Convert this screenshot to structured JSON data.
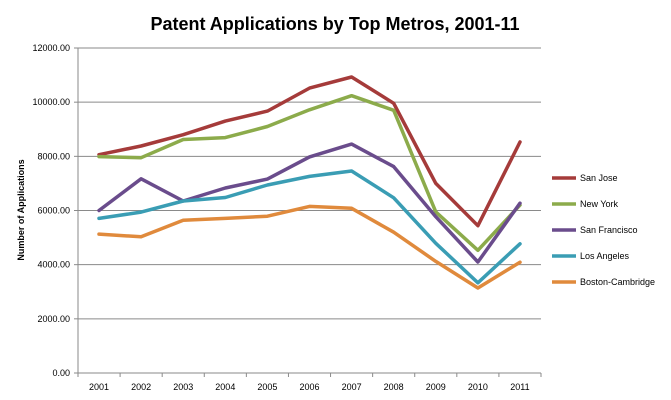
{
  "chart_data": {
    "type": "line",
    "title": "Patent Applications by Top Metros, 2001-11",
    "xlabel": "",
    "ylabel": "Number of Applications",
    "ylim": [
      0,
      12000
    ],
    "y_ticks": [
      "0.00",
      "2000.00",
      "4000.00",
      "6000.00",
      "8000.00",
      "10000.00",
      "12000.00"
    ],
    "y_tick_values": [
      0,
      2000,
      4000,
      6000,
      8000,
      10000,
      12000
    ],
    "categories": [
      "2001",
      "2002",
      "2003",
      "2004",
      "2005",
      "2006",
      "2007",
      "2008",
      "2009",
      "2010",
      "2011"
    ],
    "grid": true,
    "legend": "right",
    "series": [
      {
        "name": "San Jose",
        "color": "#a53b3a",
        "values": [
          8060,
          8380,
          8800,
          9300,
          9670,
          10520,
          10930,
          9960,
          7000,
          5440,
          8530
        ]
      },
      {
        "name": "New York",
        "color": "#8cab4b",
        "values": [
          7990,
          7950,
          8620,
          8690,
          9100,
          9720,
          10240,
          9700,
          5950,
          4530,
          6200
        ]
      },
      {
        "name": "San Francisco",
        "color": "#6a4c8c",
        "values": [
          6000,
          7170,
          6350,
          6830,
          7160,
          7980,
          8450,
          7620,
          5770,
          4100,
          6270
        ]
      },
      {
        "name": "Los Angeles",
        "color": "#3a9db4",
        "values": [
          5710,
          5940,
          6350,
          6480,
          6940,
          7260,
          7460,
          6470,
          4790,
          3330,
          4770
        ]
      },
      {
        "name": "Boston-Cambridge",
        "color": "#e08a3c",
        "values": [
          5130,
          5030,
          5640,
          5710,
          5790,
          6150,
          6080,
          5200,
          4120,
          3140,
          4090
        ]
      }
    ]
  }
}
